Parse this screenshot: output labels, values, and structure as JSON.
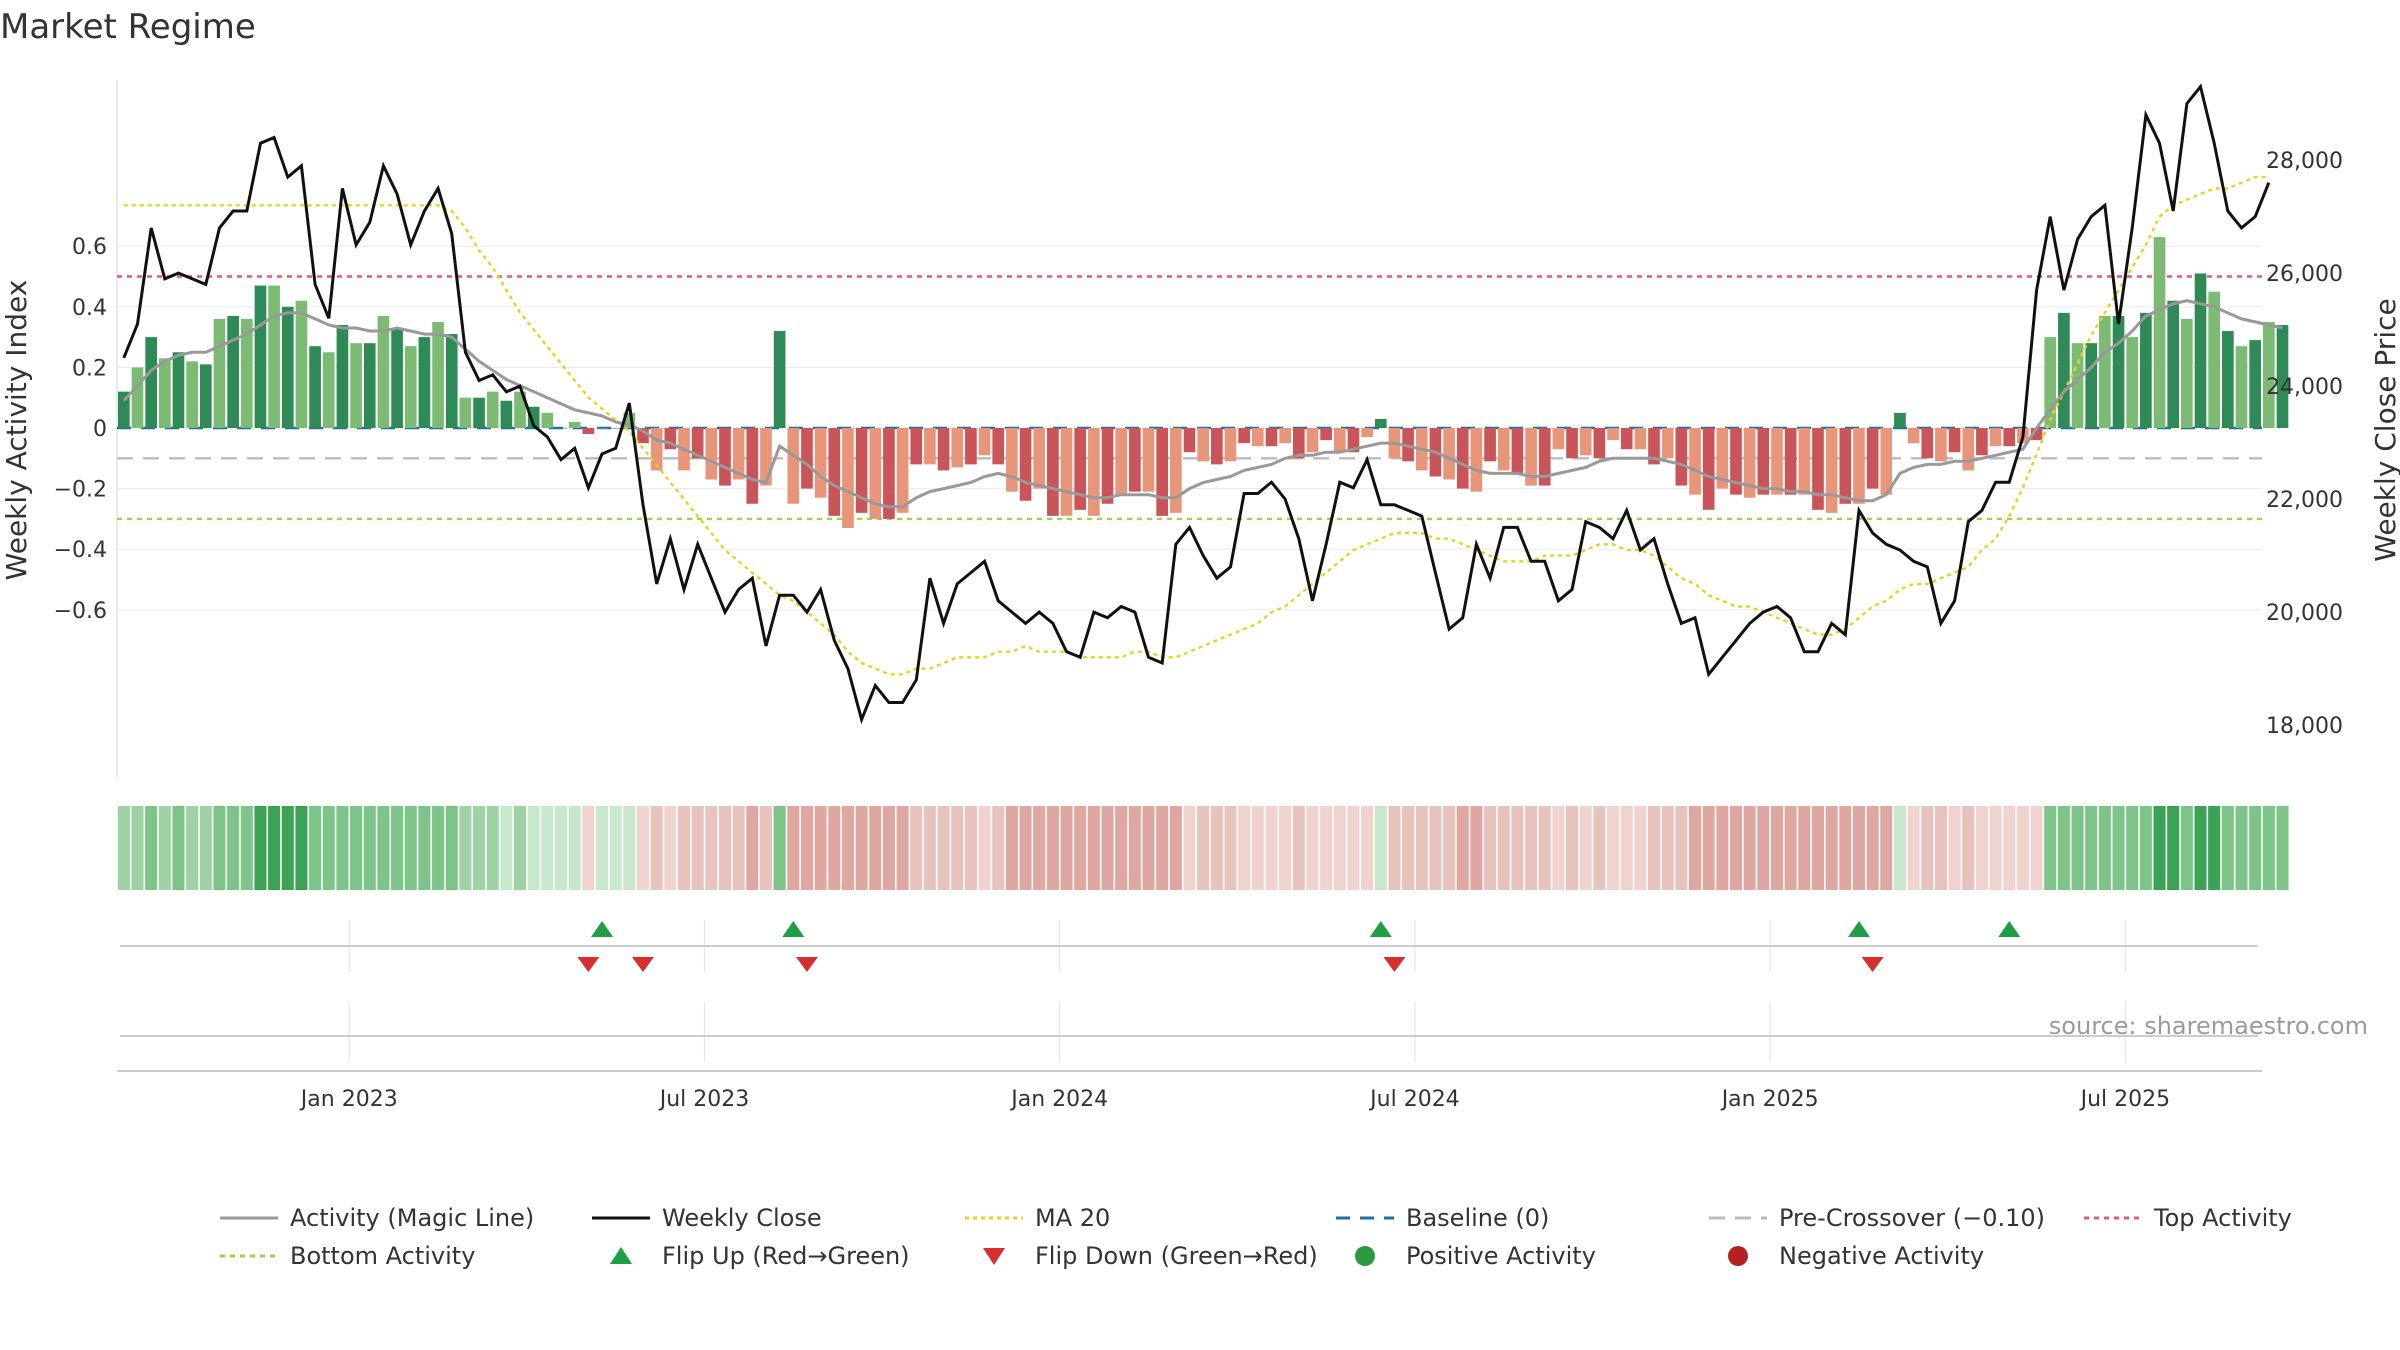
{
  "chart_data": {
    "type": "bar",
    "title": "Market Regime",
    "left_axis": {
      "label": "Weekly Activity Index",
      "ylim": [
        -0.7,
        0.7
      ],
      "ticks": [
        -0.6,
        -0.4,
        -0.2,
        0,
        0.2,
        0.4,
        0.6
      ],
      "tick_labels": [
        "−0.6",
        "−0.4",
        "−0.2",
        "0",
        "0.2",
        "0.4",
        "0.6"
      ]
    },
    "right_axis": {
      "label": "Weekly Close Price",
      "ylim": [
        17100,
        29400
      ],
      "ticks": [
        18000,
        20000,
        22000,
        24000,
        26000,
        28000
      ],
      "tick_labels": [
        "18,000",
        "20,000",
        "22,000",
        "24,000",
        "26,000",
        "28,000"
      ]
    },
    "x_axis": {
      "ticks": [
        "Jan 2023",
        "Jul 2023",
        "Jan 2024",
        "Jul 2024",
        "Jan 2025",
        "Jul 2025"
      ],
      "tick_weeks": [
        17,
        43,
        69,
        95,
        121,
        147
      ],
      "weeks": 157
    },
    "thresholds": {
      "top_activity": 0.5,
      "bottom_activity": -0.3,
      "pre_crossover": -0.1,
      "baseline": 0
    },
    "activity": [
      0.12,
      0.2,
      0.3,
      0.23,
      0.25,
      0.22,
      0.21,
      0.36,
      0.37,
      0.36,
      0.47,
      0.47,
      0.4,
      0.42,
      0.27,
      0.25,
      0.34,
      0.28,
      0.28,
      0.37,
      0.33,
      0.27,
      0.3,
      0.35,
      0.31,
      0.1,
      0.1,
      0.12,
      0.09,
      0.12,
      0.07,
      0.05,
      0.0,
      0.02,
      -0.02,
      0.0,
      0.0,
      0.05,
      -0.05,
      -0.14,
      -0.07,
      -0.14,
      -0.1,
      -0.17,
      -0.19,
      -0.17,
      -0.25,
      -0.19,
      0.32,
      -0.25,
      -0.2,
      -0.23,
      -0.29,
      -0.33,
      -0.28,
      -0.3,
      -0.3,
      -0.28,
      -0.12,
      -0.12,
      -0.14,
      -0.13,
      -0.12,
      -0.09,
      -0.12,
      -0.21,
      -0.24,
      -0.2,
      -0.29,
      -0.29,
      -0.27,
      -0.29,
      -0.25,
      -0.22,
      -0.21,
      -0.21,
      -0.29,
      -0.28,
      -0.08,
      -0.11,
      -0.12,
      -0.11,
      -0.05,
      -0.06,
      -0.06,
      -0.05,
      -0.1,
      -0.08,
      -0.04,
      -0.08,
      -0.08,
      -0.03,
      0.03,
      -0.1,
      -0.11,
      -0.14,
      -0.16,
      -0.17,
      -0.2,
      -0.21,
      -0.11,
      -0.14,
      -0.15,
      -0.19,
      -0.19,
      -0.07,
      -0.1,
      -0.09,
      -0.1,
      -0.04,
      -0.07,
      -0.07,
      -0.12,
      -0.1,
      -0.19,
      -0.22,
      -0.27,
      -0.2,
      -0.22,
      -0.23,
      -0.22,
      -0.22,
      -0.22,
      -0.22,
      -0.27,
      -0.28,
      -0.25,
      -0.25,
      -0.2,
      -0.22,
      0.05,
      -0.05,
      -0.1,
      -0.11,
      -0.08,
      -0.14,
      -0.09,
      -0.06,
      -0.06,
      -0.05,
      -0.04,
      0.3,
      0.38,
      0.28,
      0.28,
      0.37,
      0.37,
      0.3,
      0.38,
      0.63,
      0.42,
      0.36,
      0.51,
      0.45,
      0.32,
      0.27,
      0.29,
      0.35,
      0.34
    ],
    "magic_line": [
      0.09,
      0.14,
      0.19,
      0.22,
      0.24,
      0.25,
      0.25,
      0.27,
      0.29,
      0.31,
      0.34,
      0.37,
      0.38,
      0.38,
      0.36,
      0.34,
      0.33,
      0.33,
      0.32,
      0.32,
      0.33,
      0.32,
      0.31,
      0.31,
      0.3,
      0.26,
      0.22,
      0.19,
      0.16,
      0.14,
      0.12,
      0.1,
      0.08,
      0.06,
      0.05,
      0.04,
      0.02,
      0.01,
      -0.01,
      -0.04,
      -0.05,
      -0.07,
      -0.09,
      -0.11,
      -0.13,
      -0.15,
      -0.17,
      -0.18,
      -0.06,
      -0.09,
      -0.12,
      -0.16,
      -0.19,
      -0.21,
      -0.23,
      -0.25,
      -0.26,
      -0.26,
      -0.23,
      -0.21,
      -0.2,
      -0.19,
      -0.18,
      -0.16,
      -0.15,
      -0.16,
      -0.18,
      -0.19,
      -0.2,
      -0.21,
      -0.22,
      -0.23,
      -0.23,
      -0.22,
      -0.22,
      -0.22,
      -0.23,
      -0.23,
      -0.2,
      -0.18,
      -0.17,
      -0.16,
      -0.14,
      -0.13,
      -0.12,
      -0.1,
      -0.09,
      -0.09,
      -0.08,
      -0.08,
      -0.07,
      -0.06,
      -0.05,
      -0.05,
      -0.06,
      -0.07,
      -0.08,
      -0.1,
      -0.12,
      -0.14,
      -0.15,
      -0.15,
      -0.15,
      -0.16,
      -0.16,
      -0.15,
      -0.14,
      -0.13,
      -0.11,
      -0.1,
      -0.1,
      -0.1,
      -0.1,
      -0.11,
      -0.12,
      -0.14,
      -0.16,
      -0.17,
      -0.18,
      -0.19,
      -0.2,
      -0.2,
      -0.21,
      -0.21,
      -0.22,
      -0.22,
      -0.23,
      -0.24,
      -0.24,
      -0.22,
      -0.15,
      -0.13,
      -0.12,
      -0.12,
      -0.11,
      -0.11,
      -0.1,
      -0.09,
      -0.08,
      -0.07,
      0.0,
      0.06,
      0.12,
      0.16,
      0.2,
      0.25,
      0.28,
      0.32,
      0.37,
      0.39,
      0.41,
      0.42,
      0.41,
      0.4,
      0.38,
      0.36,
      0.35,
      0.34,
      0.33
    ],
    "weekly_close": [
      24500,
      25100,
      26800,
      25900,
      26000,
      25900,
      25800,
      26800,
      27100,
      27100,
      28300,
      28400,
      27700,
      27900,
      25800,
      25200,
      27500,
      26500,
      26900,
      27900,
      27400,
      26500,
      27100,
      27500,
      26700,
      24600,
      24100,
      24200,
      23900,
      24000,
      23300,
      23100,
      22700,
      22900,
      22200,
      22800,
      22900,
      23700,
      21900,
      20500,
      21300,
      20400,
      21200,
      20600,
      20000,
      20400,
      20600,
      19400,
      20300,
      20300,
      20000,
      20400,
      19500,
      19000,
      18100,
      18700,
      18400,
      18400,
      18800,
      20600,
      19800,
      20500,
      20700,
      20900,
      20200,
      20000,
      19800,
      20000,
      19800,
      19300,
      19200,
      20000,
      19900,
      20100,
      20000,
      19200,
      19100,
      21200,
      21500,
      21000,
      20600,
      20800,
      22100,
      22100,
      22300,
      22000,
      21300,
      20200,
      21200,
      22300,
      22200,
      22700,
      21900,
      21900,
      21800,
      21700,
      20700,
      19700,
      19900,
      21200,
      20600,
      21500,
      21500,
      20900,
      20900,
      20200,
      20400,
      21600,
      21500,
      21300,
      21800,
      21100,
      21300,
      20500,
      19800,
      19900,
      18900,
      19200,
      19500,
      19800,
      20000,
      20100,
      19900,
      19300,
      19300,
      19800,
      19600,
      21800,
      21400,
      21200,
      21100,
      20900,
      20800,
      19800,
      20200,
      21600,
      21800,
      22300,
      22300,
      23100,
      25700,
      27000,
      25700,
      26600,
      27000,
      27200,
      25100,
      26800,
      28800,
      28300,
      27100,
      29000,
      29300,
      28300,
      27100,
      26800,
      27000,
      27600
    ],
    "ma20": [
      27200,
      27200,
      27200,
      27200,
      27200,
      27200,
      27200,
      27200,
      27200,
      27200,
      27200,
      27200,
      27200,
      27200,
      27200,
      27200,
      27200,
      27200,
      27200,
      27200,
      27200,
      27200,
      27200,
      27200,
      27100,
      26800,
      26400,
      26100,
      25700,
      25300,
      25000,
      24700,
      24400,
      24100,
      23800,
      23600,
      23400,
      23200,
      22900,
      22600,
      22300,
      22000,
      21700,
      21400,
      21100,
      20900,
      20700,
      20500,
      20300,
      20200,
      20000,
      19800,
      19600,
      19300,
      19100,
      19000,
      18900,
      18900,
      19000,
      19000,
      19100,
      19200,
      19200,
      19200,
      19300,
      19300,
      19400,
      19300,
      19300,
      19300,
      19200,
      19200,
      19200,
      19200,
      19300,
      19300,
      19200,
      19200,
      19300,
      19400,
      19500,
      19600,
      19700,
      19800,
      20000,
      20100,
      20300,
      20500,
      20700,
      20900,
      21100,
      21200,
      21300,
      21400,
      21400,
      21400,
      21300,
      21300,
      21200,
      21100,
      21000,
      20900,
      20900,
      20900,
      21000,
      21000,
      21000,
      21100,
      21200,
      21200,
      21100,
      21100,
      21000,
      20800,
      20600,
      20500,
      20300,
      20200,
      20100,
      20100,
      20000,
      19900,
      19800,
      19700,
      19600,
      19600,
      19700,
      19900,
      20100,
      20200,
      20400,
      20500,
      20500,
      20600,
      20700,
      20800,
      21100,
      21300,
      21700,
      22200,
      22800,
      23400,
      23900,
      24400,
      24900,
      25300,
      25700,
      26100,
      26500,
      27000,
      27200,
      27300,
      27400,
      27500,
      27500,
      27600,
      27700,
      27700
    ],
    "flip_up_weeks": [
      35,
      49,
      92,
      127,
      138
    ],
    "flip_down_weeks": [
      34,
      38,
      50,
      93,
      128
    ],
    "legend": [
      {
        "label": "Activity (Magic Line)",
        "kind": "line",
        "color": "#999999",
        "dash": ""
      },
      {
        "label": "Weekly Close",
        "kind": "line",
        "color": "#111111",
        "dash": ""
      },
      {
        "label": "MA 20",
        "kind": "line",
        "color": "#e8d21d",
        "dash": "4,4"
      },
      {
        "label": "Baseline (0)",
        "kind": "line",
        "color": "#1f6fa5",
        "dash": "14,10"
      },
      {
        "label": "Pre-Crossover (−0.10)",
        "kind": "line",
        "color": "#bbbbbb",
        "dash": "16,10"
      },
      {
        "label": "Top Activity",
        "kind": "line",
        "color": "#e8577d",
        "dash": "5,5"
      },
      {
        "label": "Bottom Activity",
        "kind": "line",
        "color": "#9fd34b",
        "dash": "5,5"
      },
      {
        "label": "Flip Up (Red→Green)",
        "kind": "tri-up",
        "color": "#1e9e46",
        "dash": ""
      },
      {
        "label": "Flip Down (Green→Red)",
        "kind": "tri-down",
        "color": "#d62f2f",
        "dash": ""
      },
      {
        "label": "Positive Activity",
        "kind": "dot",
        "color": "#2a9a3e",
        "dash": ""
      },
      {
        "label": "Negative Activity",
        "kind": "dot",
        "color": "#b22222",
        "dash": ""
      }
    ],
    "colors": {
      "pos_strong": "#2e8b57",
      "pos_light": "#7dbb75",
      "neg_strong": "#c9545a",
      "neg_light": "#e8967a"
    },
    "source": "source: sharemaestro.com"
  }
}
